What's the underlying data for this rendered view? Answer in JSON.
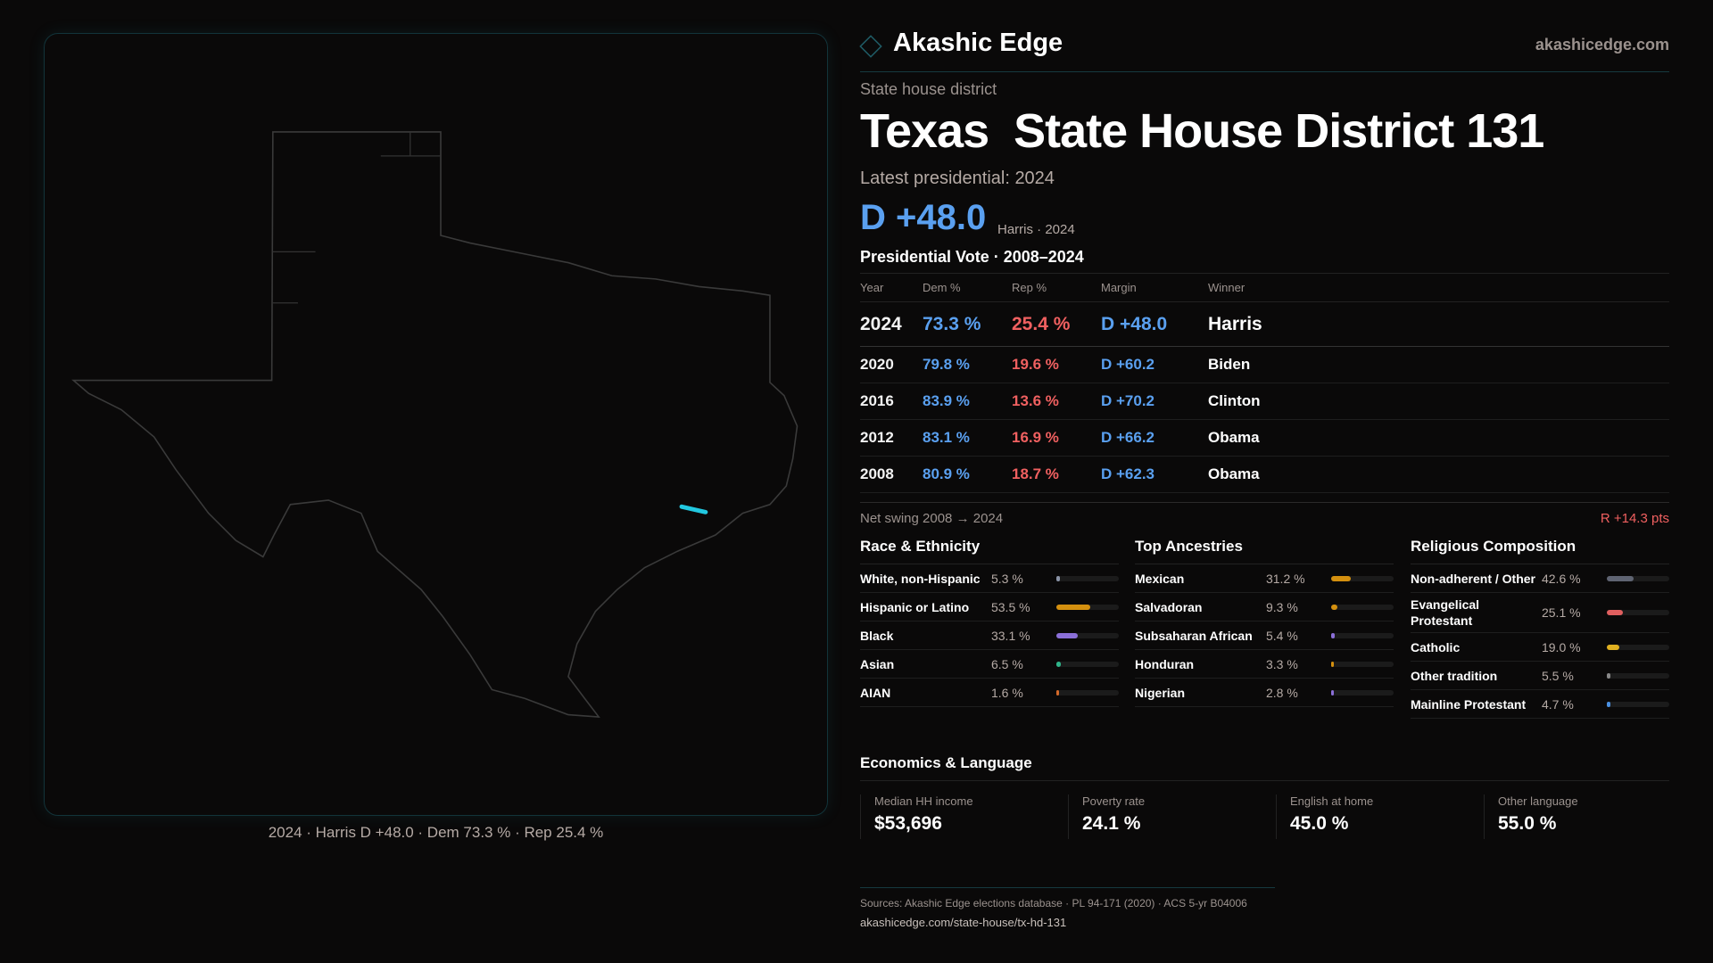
{
  "brand": {
    "name": "Akashic Edge",
    "site": "akashicedge.com"
  },
  "header": {
    "kind": "State house district",
    "title": "Texas  State House District 131",
    "latest": "Latest presidential: 2024",
    "margin": "D +48.0",
    "margin_sub": "Harris · 2024"
  },
  "map": {
    "caption": "2024 · Harris D +48.0 · Dem 73.3 % · Rep 25.4 %",
    "highlight_color": "#22c8e0"
  },
  "pres": {
    "title": "Presidential Vote · 2008–2024",
    "headers": [
      "Year",
      "Dem %",
      "Rep %",
      "Margin",
      "Winner"
    ],
    "rows": [
      [
        "2024",
        "73.3 %",
        "25.4 %",
        "D +48.0",
        "Harris"
      ],
      [
        "2020",
        "79.8 %",
        "19.6 %",
        "D +60.2",
        "Biden"
      ],
      [
        "2016",
        "83.9 %",
        "13.6 %",
        "D +70.2",
        "Clinton"
      ],
      [
        "2012",
        "83.1 %",
        "16.9 %",
        "D +66.2",
        "Obama"
      ],
      [
        "2008",
        "80.9 %",
        "18.7 %",
        "D +62.3",
        "Obama"
      ]
    ]
  },
  "swing": {
    "label": "Net swing 2008 → 2024",
    "value": "R +14.3 pts"
  },
  "race": {
    "title": "Race & Ethnicity",
    "items": [
      {
        "label": "White, non-Hispanic",
        "value": "5.3 %",
        "pct": 5.3,
        "color": "#8a93a6"
      },
      {
        "label": "Hispanic or Latino",
        "value": "53.5 %",
        "pct": 53.5,
        "color": "#d4900f"
      },
      {
        "label": "Black",
        "value": "33.1 %",
        "pct": 33.1,
        "color": "#8b6fd8"
      },
      {
        "label": "Asian",
        "value": "6.5 %",
        "pct": 6.5,
        "color": "#2fb58a"
      },
      {
        "label": "AIAN",
        "value": "1.6 %",
        "pct": 1.6,
        "color": "#d46a2a"
      }
    ]
  },
  "ancestry": {
    "title": "Top Ancestries",
    "items": [
      {
        "label": "Mexican",
        "value": "31.2 %",
        "pct": 31.2,
        "color": "#d4900f"
      },
      {
        "label": "Salvadoran",
        "value": "9.3 %",
        "pct": 9.3,
        "color": "#d4900f"
      },
      {
        "label": "Subsaharan African",
        "value": "5.4 %",
        "pct": 5.4,
        "color": "#8b6fd8"
      },
      {
        "label": "Honduran",
        "value": "3.3 %",
        "pct": 3.3,
        "color": "#d4900f"
      },
      {
        "label": "Nigerian",
        "value": "2.8 %",
        "pct": 2.8,
        "color": "#8b6fd8"
      }
    ]
  },
  "religion": {
    "title": "Religious Composition",
    "items": [
      {
        "label": "Non-adherent / Other",
        "value": "42.6 %",
        "pct": 42.6,
        "color": "#5f6472"
      },
      {
        "label": "Evangelical Protestant",
        "value": "25.1 %",
        "pct": 25.1,
        "color": "#e05f5f"
      },
      {
        "label": "Catholic",
        "value": "19.0 %",
        "pct": 19.0,
        "color": "#e0b020"
      },
      {
        "label": "Other tradition",
        "value": "5.5 %",
        "pct": 5.5,
        "color": "#888888"
      },
      {
        "label": "Mainline Protestant",
        "value": "4.7 %",
        "pct": 4.7,
        "color": "#4a90e2"
      }
    ]
  },
  "economics": {
    "title": "Economics & Language",
    "cards": [
      {
        "label": "Median HH income",
        "value": "$53,696"
      },
      {
        "label": "Poverty rate",
        "value": "24.1 %"
      },
      {
        "label": "English at home",
        "value": "45.0 %"
      },
      {
        "label": "Other language",
        "value": "55.0 %"
      }
    ]
  },
  "footer": {
    "sources": "Sources: Akashic Edge elections database · PL 94-171 (2020) · ACS 5-yr B04006",
    "url": "akashicedge.com/state-house/tx-hd-131"
  }
}
